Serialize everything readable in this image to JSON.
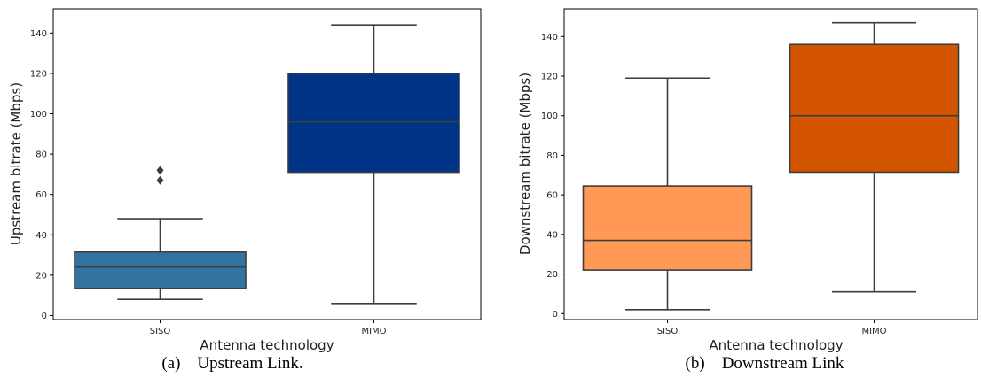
{
  "chart_data": [
    {
      "type": "box",
      "caption": "(a)    Upstream Link.",
      "xlabel": "Antenna technology",
      "ylabel": "Upstream bitrate (Mbps)",
      "ylim": [
        -2,
        152
      ],
      "yticks": [
        0,
        20,
        40,
        60,
        80,
        100,
        120,
        140
      ],
      "categories": [
        "SISO",
        "MIMO"
      ],
      "boxes": [
        {
          "category": "SISO",
          "whisker_low": 8,
          "q1": 13.5,
          "median": 24,
          "q3": 31.5,
          "whisker_high": 48,
          "outliers": [
            67,
            72
          ],
          "color": "#3274a1"
        },
        {
          "category": "MIMO",
          "whisker_low": 6,
          "q1": 71,
          "median": 96,
          "q3": 120,
          "whisker_high": 144,
          "outliers": [],
          "color": "#003487"
        }
      ]
    },
    {
      "type": "box",
      "caption": "(b)    Downstream Link",
      "xlabel": "Antenna technology",
      "ylabel": "Downstream bitrate (Mbps)",
      "ylim": [
        -3,
        154
      ],
      "yticks": [
        0,
        20,
        40,
        60,
        80,
        100,
        120,
        140
      ],
      "categories": [
        "SISO",
        "MIMO"
      ],
      "boxes": [
        {
          "category": "SISO",
          "whisker_low": 2,
          "q1": 22,
          "median": 37,
          "q3": 64.5,
          "whisker_high": 119,
          "outliers": [],
          "color": "#ff9955"
        },
        {
          "category": "MIMO",
          "whisker_low": 11,
          "q1": 71.5,
          "median": 100,
          "q3": 136,
          "whisker_high": 147,
          "outliers": [],
          "color": "#d45500"
        }
      ]
    }
  ]
}
